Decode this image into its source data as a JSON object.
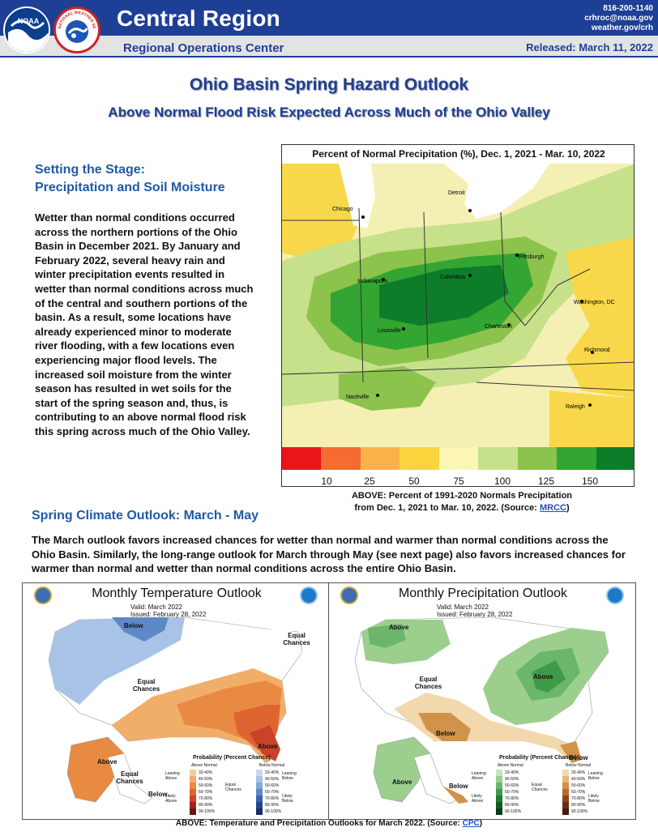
{
  "header": {
    "title": "Central Region",
    "subtitle": "Regional Operations Center",
    "phone": "816-200-1140",
    "email": "crhroc@noaa.gov",
    "web": "weather.gov/crh",
    "released": "Released:  March 11, 2022",
    "noaa_logo_text": "NOAA",
    "nws_logo_text": "NATIONAL WEATHER SERVICE"
  },
  "title": "Ohio Basin Spring Hazard Outlook",
  "subtitle": "Above Normal Flood Risk Expected Across Much of the Ohio Valley",
  "section1": {
    "heading_line1": "Setting the Stage:",
    "heading_line2": "Precipitation and Soil Moisture",
    "body": "Wetter than normal conditions occurred across the northern portions of the Ohio Basin in December 2021. By January and February 2022, several heavy rain and winter precipitation events resulted in wetter than normal conditions across much of the central and southern portions of the basin. As a result, some locations have already experienced minor to moderate river flooding, with a few locations even  experiencing major flood levels. The increased soil moisture from the winter season has resulted in wet soils for the start of the spring season and, thus, is contributing to an above normal flood risk this spring across much of the Ohio Valley."
  },
  "precip_map": {
    "title": "Percent of Normal Precipitation (%), Dec. 1, 2021 - Mar. 10, 2022",
    "cities": [
      "Detroit",
      "Chicago",
      "Pittsburgh",
      "Columbus",
      "Indianapolis",
      "Washington, DC",
      "Louisville",
      "Charleston",
      "Richmond",
      "Nashville",
      "Raleigh"
    ],
    "legend_labels": [
      "10",
      "25",
      "50",
      "75",
      "100",
      "125",
      "150"
    ],
    "legend_colors": [
      "#e8151b",
      "#f76b32",
      "#f9b24a",
      "#f9d43c",
      "#fbf5b6",
      "#c7e08a",
      "#8cc34c",
      "#33a532",
      "#0d7d2a"
    ],
    "caption_line1": "ABOVE: Percent of 1991-2020 Normals Precipitation",
    "caption_line2": "from Dec. 1, 2021 to Mar. 10, 2022.  (Source: ",
    "caption_source": "MRCC",
    "caption_end": ")"
  },
  "section2": {
    "heading": "Spring Climate Outlook:  March - May",
    "body": "The March outlook favors increased chances for wetter than normal and warmer than normal conditions across the Ohio Basin. Similarly, the long-range outlook for March through May (see next page) also favors increased chances for warmer than normal and wetter than normal conditions across the entire Ohio Basin."
  },
  "temp_outlook": {
    "title": "Monthly Temperature Outlook",
    "valid": "Valid:   March 2022",
    "issued": "Issued:   February 28, 2022",
    "labels": {
      "below": "Below",
      "equal_ne": "Equal Chances",
      "equal_center": "Equal Chances",
      "above_se": "Above",
      "above_ak": "Above",
      "equal_ak": "Equal Chances",
      "below_ak": "Below"
    },
    "prob_title": "Probability (Percent Chance)",
    "above_normal": "Above Normal",
    "below_normal": "Below Normal",
    "leaning_above": "Leaning Above",
    "likely_above": "Likely Above",
    "equal_chances": "Equal Chances",
    "leaning_below": "Leaning Below",
    "likely_below": "Likely Below",
    "bins": [
      "33-40%",
      "40-50%",
      "50-60%",
      "60-70%",
      "70-80%",
      "80-90%",
      "90-100%"
    ],
    "above_colors": [
      "#f3ce9b",
      "#f1ae6a",
      "#e98a43",
      "#de6531",
      "#c8432a",
      "#9e2422",
      "#6a1414"
    ],
    "below_colors": [
      "#cbdaee",
      "#a8c3e6",
      "#86a9d9",
      "#5f88c6",
      "#3c64ad",
      "#24468c",
      "#162f66"
    ]
  },
  "precip_outlook": {
    "title": "Monthly Precipitation Outlook",
    "valid": "Valid:   March 2022",
    "issued": "Issued:   February 28, 2022",
    "labels": {
      "above_nw": "Above",
      "equal_center": "Equal Chances",
      "above_ohio": "Above",
      "below_south": "Below",
      "below_fl": "Below",
      "above_ak": "Above",
      "below_ak": "Below"
    },
    "prob_title": "Probability (Percent Chance)",
    "above_normal": "Above Normal",
    "below_normal": "Below Normal",
    "leaning_above": "Leaning Above",
    "likely_above": "Likely Above",
    "equal_chances": "Equal Chances",
    "leaning_below": "Leaning Below",
    "likely_below": "Likely Below",
    "bins": [
      "33-40%",
      "40-50%",
      "50-60%",
      "60-70%",
      "70-80%",
      "80-90%",
      "90-100%"
    ],
    "above_colors": [
      "#c5e3b8",
      "#9ccf8e",
      "#6bb66a",
      "#3f9a47",
      "#247a32",
      "#135b24",
      "#073d16"
    ],
    "below_colors": [
      "#f1d9ad",
      "#e3b978",
      "#d1924a",
      "#b56a2c",
      "#8d461c",
      "#6a2e12",
      "#46190a"
    ]
  },
  "bottom_caption": {
    "text": "ABOVE: Temperature and Precipitation Outlooks for March 2022.  (Source: ",
    "source": "CPC",
    "end": ")"
  }
}
